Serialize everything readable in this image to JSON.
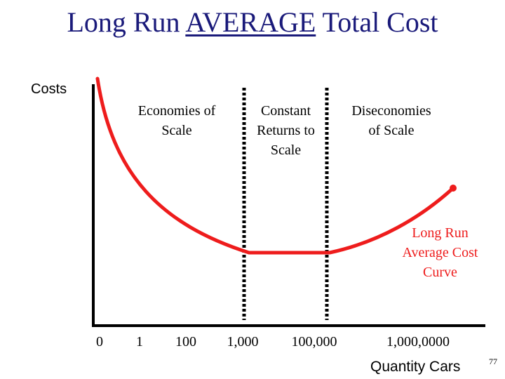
{
  "slide": {
    "title_prefix": "Long Run ",
    "title_emph": "AVERAGE",
    "title_suffix": " Total Cost",
    "page_number": "77"
  },
  "chart_data": {
    "type": "line",
    "title": "Long Run AVERAGE Total Cost",
    "ylabel": "Costs",
    "xlabel": "Quantity Cars",
    "x_tick_labels": [
      "0",
      "1",
      "100",
      "1,000",
      "100,000",
      "1,000,0000"
    ],
    "regions": [
      {
        "label": "Economies of\nScale"
      },
      {
        "label": "Constant\nReturns to\nScale"
      },
      {
        "label": "Diseconomies\nof Scale"
      }
    ],
    "series": [
      {
        "name": "Long Run\nAverage Cost\nCurve",
        "color": "#ee1c1c"
      }
    ],
    "colors": {
      "curve": "#ee1c1c",
      "axis": "#000000",
      "title": "#1a1a7a"
    }
  }
}
